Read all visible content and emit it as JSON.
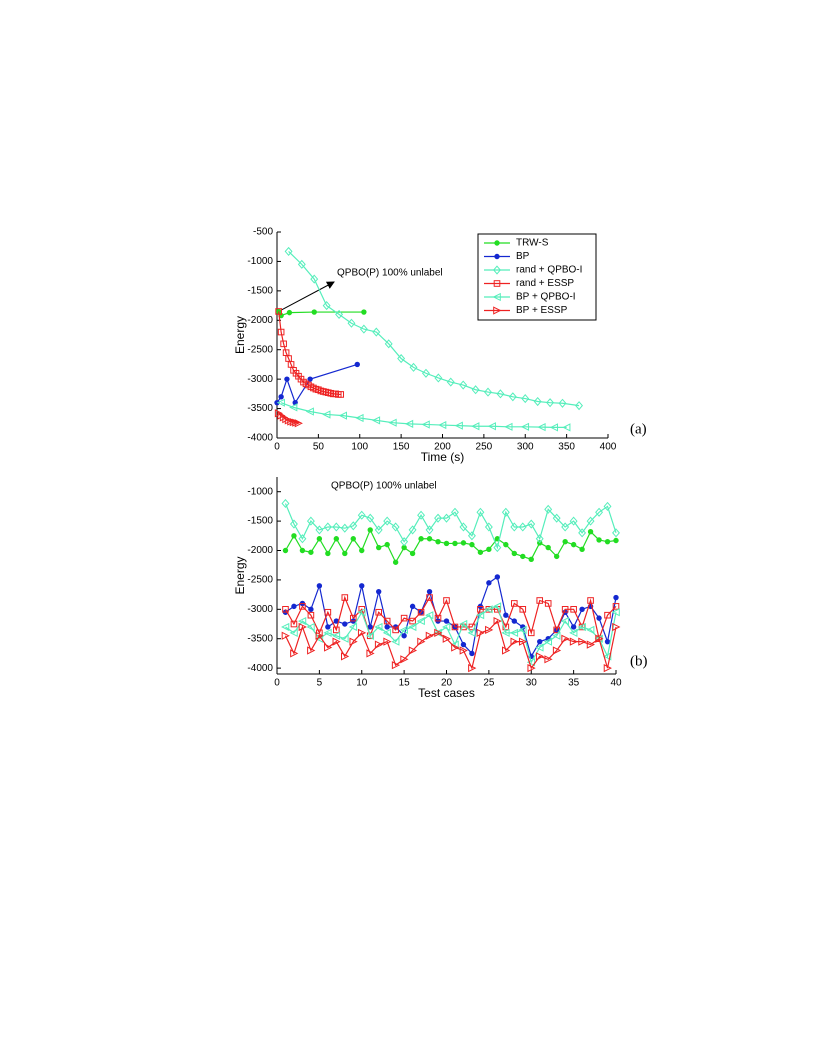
{
  "chart_data": [
    {
      "type": "line",
      "panel_label": "(a)",
      "xlabel": "Time (s)",
      "ylabel": "Energy",
      "annotation": "QPBO(P) 100% unlabel",
      "xlim": [
        0,
        400
      ],
      "ylim": [
        -4000,
        -500
      ],
      "xticks": [
        0,
        50,
        100,
        150,
        200,
        250,
        300,
        350,
        400
      ],
      "yticks": [
        -4000,
        -3500,
        -3000,
        -2500,
        -2000,
        -1500,
        -1000,
        -500
      ],
      "legend": "upper right",
      "series": [
        {
          "name": "TRW-S",
          "color": "#22dd22",
          "marker": "dot",
          "x": [
            2,
            5,
            15,
            45,
            105
          ],
          "values": [
            -1850,
            -1920,
            -1870,
            -1860,
            -1860
          ]
        },
        {
          "name": "BP",
          "color": "#1428d0",
          "marker": "star",
          "x": [
            0,
            5,
            12,
            22,
            40,
            97
          ],
          "values": [
            -3400,
            -3300,
            -3000,
            -3400,
            -3000,
            -2750
          ]
        },
        {
          "name": "rand + QPBO-I",
          "color": "#55eebb",
          "marker": "diamond",
          "x": [
            14,
            30,
            45,
            60,
            75,
            90,
            105,
            120,
            135,
            150,
            165,
            180,
            195,
            210,
            225,
            240,
            255,
            270,
            285,
            300,
            315,
            330,
            345,
            365
          ],
          "values": [
            -830,
            -1050,
            -1300,
            -1750,
            -1900,
            -2050,
            -2150,
            -2200,
            -2400,
            -2650,
            -2800,
            -2900,
            -2980,
            -3050,
            -3100,
            -3180,
            -3220,
            -3250,
            -3300,
            -3330,
            -3380,
            -3400,
            -3410,
            -3450
          ]
        },
        {
          "name": "rand + ESSP",
          "color": "#ee2222",
          "marker": "square",
          "x": [
            2,
            5,
            8,
            11,
            14,
            17,
            20,
            23,
            26,
            29,
            32,
            35,
            38,
            41,
            44,
            47,
            50,
            53,
            56,
            59,
            62,
            65,
            68,
            71,
            74,
            77
          ],
          "values": [
            -1850,
            -2200,
            -2400,
            -2550,
            -2650,
            -2750,
            -2850,
            -2900,
            -2950,
            -3000,
            -3050,
            -3080,
            -3100,
            -3130,
            -3150,
            -3170,
            -3180,
            -3200,
            -3210,
            -3220,
            -3230,
            -3240,
            -3250,
            -3250,
            -3260,
            -3260
          ]
        },
        {
          "name": "BP + QPBO-I",
          "color": "#55eebb",
          "marker": "tri-left",
          "x": [
            5,
            20,
            40,
            60,
            80,
            100,
            120,
            140,
            160,
            180,
            200,
            220,
            240,
            260,
            280,
            300,
            320,
            335,
            350
          ],
          "values": [
            -3400,
            -3480,
            -3550,
            -3600,
            -3620,
            -3660,
            -3700,
            -3740,
            -3760,
            -3770,
            -3780,
            -3790,
            -3800,
            -3800,
            -3810,
            -3810,
            -3815,
            -3820,
            -3820
          ]
        },
        {
          "name": "BP + ESSP",
          "color": "#ee2222",
          "marker": "tri-right",
          "x": [
            2,
            5,
            8,
            11,
            14,
            17,
            20,
            23,
            26
          ],
          "values": [
            -3580,
            -3620,
            -3650,
            -3680,
            -3700,
            -3720,
            -3730,
            -3740,
            -3750
          ]
        }
      ]
    },
    {
      "type": "line",
      "panel_label": "(b)",
      "xlabel": "Test cases",
      "ylabel": "Energy",
      "annotation": "QPBO(P) 100% unlabel",
      "xlim": [
        0,
        40
      ],
      "ylim": [
        -4100,
        -750
      ],
      "xticks": [
        0,
        5,
        10,
        15,
        20,
        25,
        30,
        35,
        40
      ],
      "yticks": [
        -4000,
        -3500,
        -3000,
        -2500,
        -2000,
        -1500,
        -1000
      ],
      "x": [
        1,
        2,
        3,
        4,
        5,
        6,
        7,
        8,
        9,
        10,
        11,
        12,
        13,
        14,
        15,
        16,
        17,
        18,
        19,
        20,
        21,
        22,
        23,
        24,
        25,
        26,
        27,
        28,
        29,
        30,
        31,
        32,
        33,
        34,
        35,
        36,
        37,
        38,
        39,
        40
      ],
      "series": [
        {
          "color": "#22dd22",
          "marker": "dot",
          "values": [
            -2000,
            -1750,
            -2000,
            -2030,
            -1800,
            -2050,
            -1800,
            -2050,
            -1800,
            -2000,
            -1650,
            -1950,
            -1900,
            -2200,
            -1950,
            -2050,
            -1800,
            -1800,
            -1850,
            -1880,
            -1880,
            -1870,
            -1900,
            -2030,
            -1980,
            -1800,
            -1900,
            -2050,
            -2100,
            -2150,
            -1870,
            -1950,
            -2100,
            -1850,
            -1900,
            -1980,
            -1680,
            -1820,
            -1850,
            -1830
          ]
        },
        {
          "color": "#55eebb",
          "marker": "diamond",
          "values": [
            -1200,
            -1550,
            -1800,
            -1500,
            -1650,
            -1600,
            -1600,
            -1620,
            -1580,
            -1400,
            -1450,
            -1650,
            -1500,
            -1600,
            -1850,
            -1650,
            -1400,
            -1650,
            -1450,
            -1450,
            -1350,
            -1600,
            -1750,
            -1350,
            -1600,
            -1950,
            -1350,
            -1600,
            -1600,
            -1550,
            -1800,
            -1300,
            -1450,
            -1600,
            -1500,
            -1700,
            -1500,
            -1350,
            -1250,
            -1700
          ]
        },
        {
          "color": "#1428d0",
          "marker": "star",
          "values": [
            -3050,
            -2950,
            -2900,
            -3000,
            -2600,
            -3300,
            -3200,
            -3250,
            -3200,
            -2600,
            -3300,
            -2700,
            -3300,
            -3300,
            -3450,
            -2950,
            -3050,
            -2700,
            -3200,
            -3200,
            -3300,
            -3600,
            -3750,
            -2950,
            -2550,
            -2450,
            -3100,
            -3200,
            -3300,
            -3800,
            -3550,
            -3500,
            -3350,
            -3050,
            -3300,
            -3000,
            -2950,
            -3150,
            -3550,
            -2800
          ]
        },
        {
          "color": "#ee2222",
          "marker": "square",
          "values": [
            -3000,
            -3250,
            -2950,
            -3100,
            -3400,
            -3050,
            -3350,
            -2800,
            -3150,
            -3000,
            -3450,
            -3050,
            -3200,
            -3350,
            -3150,
            -3200,
            -3050,
            -2800,
            -3150,
            -2850,
            -3300,
            -3300,
            -3300,
            -3000,
            -3000,
            -3000,
            -3300,
            -2900,
            -3000,
            -3400,
            -2850,
            -2900,
            -3350,
            -3000,
            -3000,
            -3300,
            -2850,
            -3500,
            -3100,
            -2950
          ]
        },
        {
          "color": "#55eebb",
          "marker": "tri-left",
          "values": [
            -3300,
            -3400,
            -3200,
            -3300,
            -3500,
            -3400,
            -3450,
            -3500,
            -3300,
            -3050,
            -3450,
            -3300,
            -3400,
            -3550,
            -3350,
            -3300,
            -3200,
            -3100,
            -3400,
            -3300,
            -3600,
            -3250,
            -3400,
            -3100,
            -3000,
            -2950,
            -3400,
            -3400,
            -3350,
            -3900,
            -3650,
            -3550,
            -3450,
            -3200,
            -3400,
            -3300,
            -3350,
            -3500,
            -3800,
            -3050
          ]
        },
        {
          "color": "#ee2222",
          "marker": "tri-right",
          "values": [
            -3450,
            -3750,
            -3300,
            -3700,
            -3450,
            -3650,
            -3550,
            -3800,
            -3550,
            -3400,
            -3750,
            -3600,
            -3550,
            -3950,
            -3850,
            -3700,
            -3550,
            -3450,
            -3400,
            -3500,
            -3650,
            -3700,
            -4000,
            -3400,
            -3350,
            -3200,
            -3700,
            -3550,
            -3550,
            -4000,
            -3800,
            -3850,
            -3700,
            -3500,
            -3550,
            -3550,
            -3600,
            -3500,
            -4000,
            -3300
          ]
        }
      ]
    }
  ]
}
